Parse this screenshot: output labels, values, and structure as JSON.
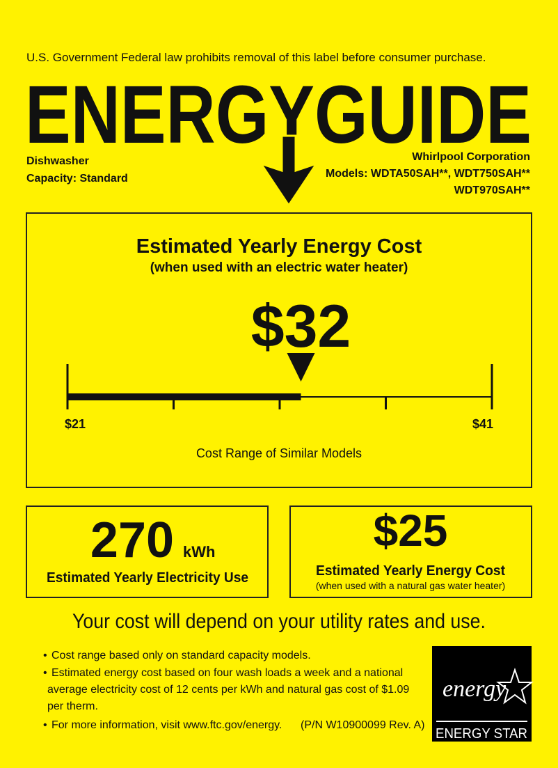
{
  "header": {
    "notice": "U.S. Government  Federal law prohibits removal of this label before consumer purchase.",
    "title": "ENERGYGUIDE"
  },
  "product": {
    "type": "Dishwasher",
    "capacity": "Capacity: Standard",
    "manufacturer": "Whirlpool Corporation",
    "models": [
      "Models: WDTA50SAH**, WDT750SAH**",
      "WDT970SAH**"
    ]
  },
  "electric_cost": {
    "title": "Estimated Yearly Energy Cost",
    "subtitle": "(when used with an electric water heater)",
    "cost": {
      "value": 32,
      "label": "$32"
    },
    "range_min": {
      "value": 21,
      "label": "$21"
    },
    "range_max": {
      "value": 41,
      "label": "$41"
    },
    "range_caption": "Cost Range of Similar Models"
  },
  "electricity_use": {
    "value": "270",
    "unit": "kWh",
    "caption": "Estimated Yearly Electricity Use"
  },
  "gas_cost": {
    "value": "$25",
    "caption": "Estimated Yearly Energy Cost",
    "note": "(when used with a natural gas water heater)"
  },
  "footer": {
    "statement": "Your cost will depend on your utility rates and use.",
    "bullets": [
      "Cost range based only on standard capacity models.",
      "Estimated energy cost based on four wash loads a week and a national",
      "average electricity cost of 12 cents per kWh and natural gas cost of $1.09",
      "per therm.",
      "For more information, visit www.ftc.gov/energy."
    ],
    "part_number": "(P/N W10900099 Rev. A)"
  },
  "logo": {
    "script": "energy",
    "label": "ENERGY STAR"
  }
}
